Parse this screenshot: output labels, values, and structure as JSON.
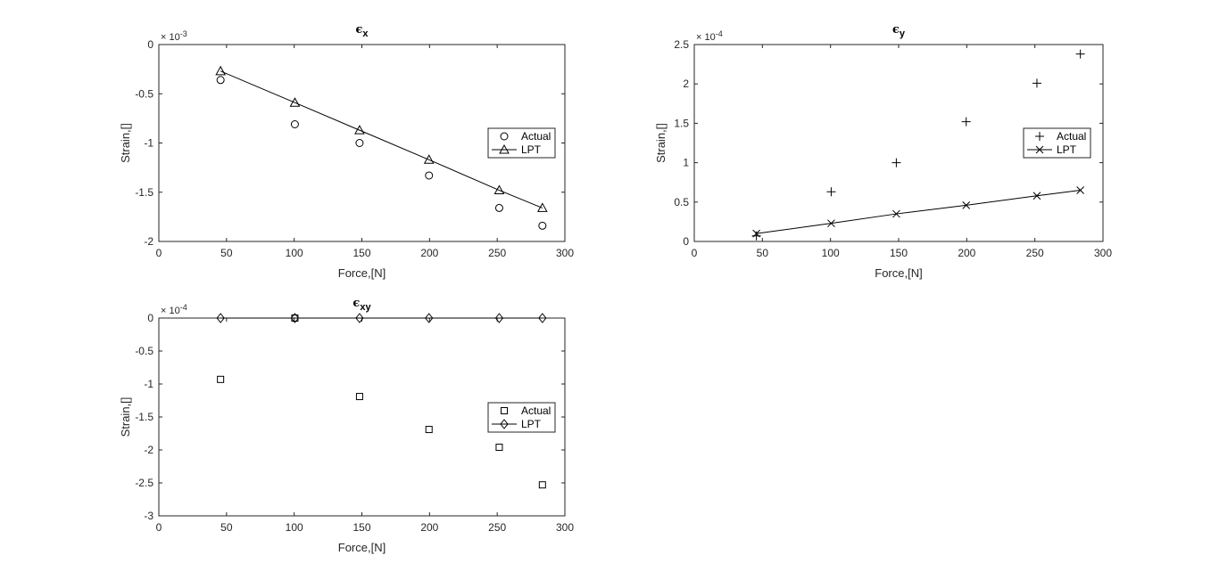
{
  "chart_data": [
    {
      "type": "scatter",
      "title": "ϵ",
      "title_subscript": "x",
      "xlabel": "Force,[N]",
      "ylabel": "Strain,[]",
      "exponent_label": "× 10",
      "exponent_power": "-3",
      "scale": 0.001,
      "xlim": [
        0,
        300
      ],
      "ylim": [
        -2,
        0
      ],
      "xticks": [
        0,
        50,
        100,
        150,
        200,
        250,
        300
      ],
      "xtick_labels": [
        "0",
        "50",
        "100",
        "150",
        "200",
        "250",
        "300"
      ],
      "yticks": [
        0,
        -0.5,
        -1,
        -1.5,
        -2
      ],
      "ytick_labels": [
        "0",
        "-0.5",
        "-1",
        "-1.5",
        "-2"
      ],
      "grid": false,
      "legend_placement": "right",
      "x": [
        45.6,
        100.5,
        148.3,
        199.6,
        251.5,
        283.4
      ],
      "series": [
        {
          "name": "Actual",
          "marker": "circle",
          "line": false,
          "values": [
            -0.36,
            -0.81,
            -1.0,
            -1.33,
            -1.66,
            -1.84
          ]
        },
        {
          "name": "LPT",
          "marker": "triangle",
          "line": true,
          "values": [
            -0.27,
            -0.59,
            -0.87,
            -1.17,
            -1.48,
            -1.66
          ]
        }
      ]
    },
    {
      "type": "scatter",
      "title": "ϵ",
      "title_subscript": "y",
      "xlabel": "Force,[N]",
      "ylabel": "Strain,[]",
      "exponent_label": "× 10",
      "exponent_power": "-4",
      "scale": 0.0001,
      "xlim": [
        0,
        300
      ],
      "ylim": [
        0,
        2.5
      ],
      "xticks": [
        0,
        50,
        100,
        150,
        200,
        250,
        300
      ],
      "xtick_labels": [
        "0",
        "50",
        "100",
        "150",
        "200",
        "250",
        "300"
      ],
      "yticks": [
        0,
        0.5,
        1,
        1.5,
        2,
        2.5
      ],
      "ytick_labels": [
        "0",
        "0.5",
        "1",
        "1.5",
        "2",
        "2.5"
      ],
      "grid": false,
      "legend_placement": "right",
      "x": [
        45.6,
        100.5,
        148.3,
        199.6,
        251.5,
        283.4
      ],
      "series": [
        {
          "name": "Actual",
          "marker": "plus",
          "line": false,
          "values": [
            0.07,
            0.63,
            1.0,
            1.52,
            2.01,
            2.38
          ]
        },
        {
          "name": "LPT",
          "marker": "x",
          "line": true,
          "values": [
            0.1,
            0.23,
            0.35,
            0.46,
            0.58,
            0.65
          ]
        }
      ]
    },
    {
      "type": "scatter",
      "title": "ϵ",
      "title_subscript": "xy",
      "xlabel": "Force,[N]",
      "ylabel": "Strain,[]",
      "exponent_label": "× 10",
      "exponent_power": "-4",
      "scale": 0.0001,
      "xlim": [
        0,
        300
      ],
      "ylim": [
        -3,
        0
      ],
      "xticks": [
        0,
        50,
        100,
        150,
        200,
        250,
        300
      ],
      "xtick_labels": [
        "0",
        "50",
        "100",
        "150",
        "200",
        "250",
        "300"
      ],
      "yticks": [
        0,
        -0.5,
        -1,
        -1.5,
        -2,
        -2.5,
        -3
      ],
      "ytick_labels": [
        "0",
        "-0.5",
        "-1",
        "-1.5",
        "-2",
        "-2.5",
        "-3"
      ],
      "grid": false,
      "legend_placement": "right",
      "x": [
        45.6,
        100.5,
        148.3,
        199.6,
        251.5,
        283.4
      ],
      "series": [
        {
          "name": "Actual",
          "marker": "square",
          "line": false,
          "values": [
            -0.93,
            0.0,
            -1.19,
            -1.69,
            -1.96,
            -2.53
          ]
        },
        {
          "name": "LPT",
          "marker": "diamond",
          "line": true,
          "values": [
            0,
            0,
            0,
            0,
            0,
            0
          ]
        }
      ]
    }
  ]
}
